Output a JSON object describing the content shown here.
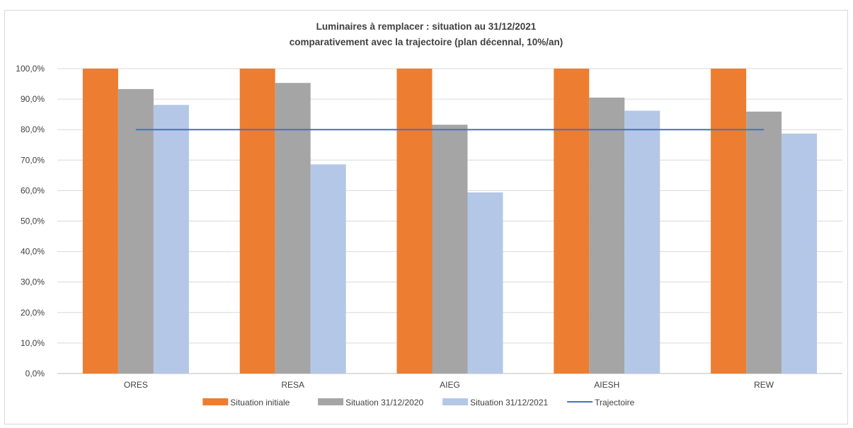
{
  "chart_data": {
    "type": "bar",
    "title": "Luminaires à remplacer : situation au 31/12/2021",
    "subtitle": "comparativement avec la trajectoire (plan décennal, 10%/an)",
    "categories": [
      "ORES",
      "RESA",
      "AIEG",
      "AIESH",
      "REW"
    ],
    "series": [
      {
        "name": "Situation initiale",
        "type": "bar",
        "color": "#ED7D31",
        "values": [
          100.0,
          100.0,
          100.0,
          100.0,
          100.0
        ]
      },
      {
        "name": "Situation 31/12/2020",
        "type": "bar",
        "color": "#A5A5A5",
        "values": [
          93.3,
          95.3,
          81.6,
          90.5,
          85.9
        ]
      },
      {
        "name": "Situation 31/12/2021",
        "type": "bar",
        "color": "#B4C7E7",
        "values": [
          88.1,
          68.6,
          59.4,
          86.2,
          78.7
        ]
      },
      {
        "name": "Trajectoire",
        "type": "line",
        "color": "#4472C4",
        "values": [
          80.0,
          80.0,
          80.0,
          80.0,
          80.0
        ]
      }
    ],
    "ylim": [
      0,
      100
    ],
    "yticks": [
      "0,0%",
      "10,0%",
      "20,0%",
      "30,0%",
      "40,0%",
      "50,0%",
      "60,0%",
      "70,0%",
      "80,0%",
      "90,0%",
      "100,0%"
    ],
    "xlabel": "",
    "ylabel": "",
    "grid": true,
    "legend": "bottom"
  }
}
